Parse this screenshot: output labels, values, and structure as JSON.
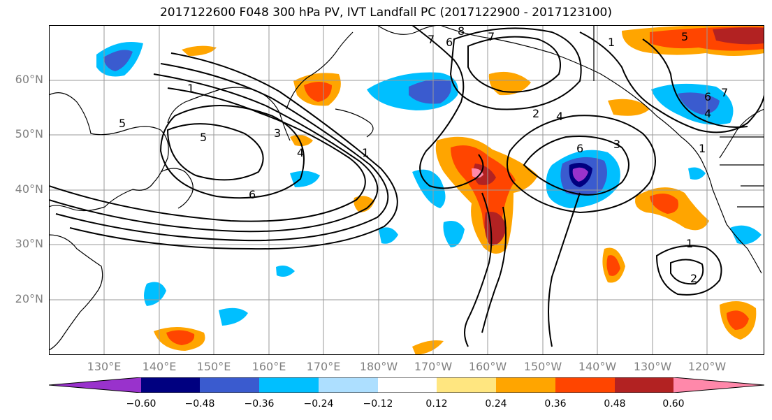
{
  "title": "2017122600 F048 300 hPa PV, IVT Landfall PC (2017122900 - 2017123100)",
  "map": {
    "lat_labels": [
      "20°N",
      "30°N",
      "40°N",
      "50°N",
      "60°N"
    ],
    "lon_labels": [
      "130°E",
      "140°E",
      "150°E",
      "160°E",
      "170°E",
      "180°W",
      "170°W",
      "160°W",
      "150°W",
      "140°W",
      "130°W",
      "120°W"
    ],
    "contour_labels": [
      "1",
      "5",
      "5",
      "3",
      "4",
      "6",
      "7",
      "6",
      "8",
      "7",
      "2",
      "4",
      "6",
      "3",
      "1",
      "5",
      "6",
      "7",
      "4",
      "1",
      "1",
      "2",
      "1"
    ]
  },
  "colorbar": {
    "colors": [
      "#9932CC",
      "#000080",
      "#3A5BCF",
      "#00BFFF",
      "#ADDFFF",
      "#FFFFFF",
      "#FFE680",
      "#FFA500",
      "#FF4500",
      "#B22222",
      "#FF88AA"
    ],
    "tick_labels": [
      "−0.60",
      "−0.48",
      "−0.36",
      "−0.24",
      "−0.12",
      "0.12",
      "0.24",
      "0.36",
      "0.48",
      "0.60"
    ]
  }
}
